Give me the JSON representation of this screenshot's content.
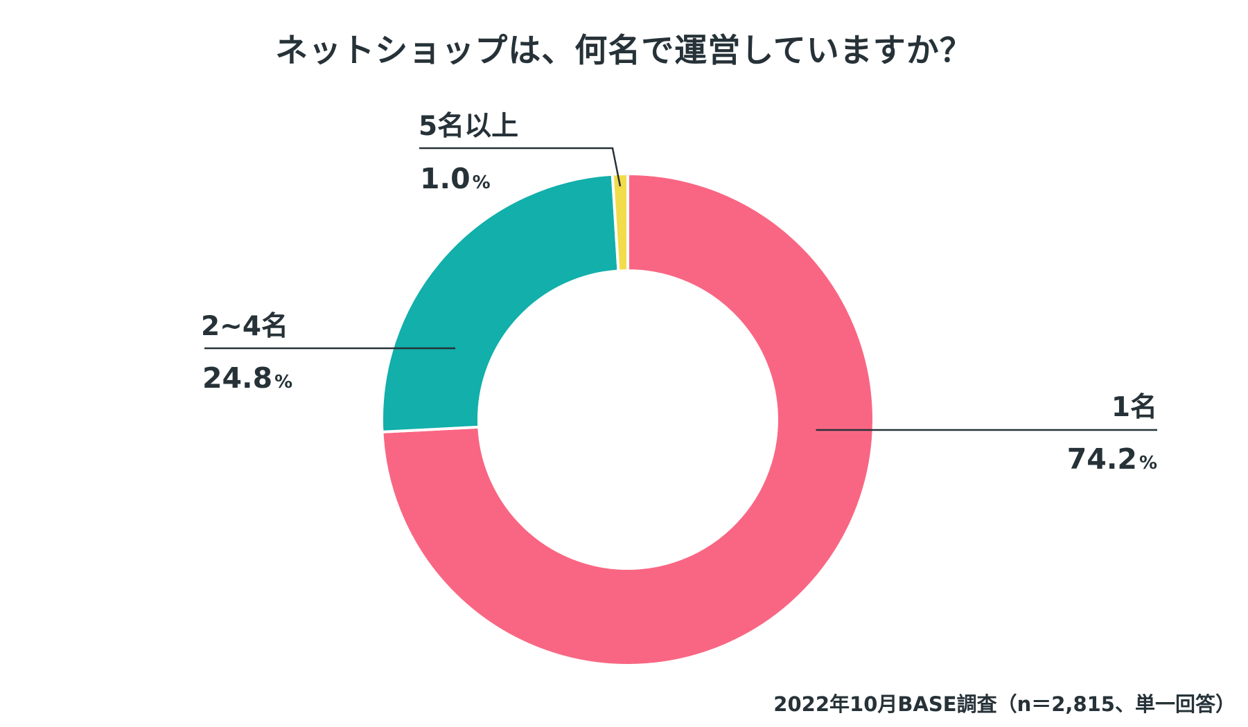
{
  "chart_data": {
    "type": "pie",
    "variant": "donut",
    "title": "ネットショップは、何名で運営していますか？",
    "categories": [
      "1名",
      "2~4名",
      "5名以上"
    ],
    "values": [
      74.2,
      24.8,
      1.0
    ],
    "value_labels": [
      "74.2",
      "24.8",
      "1.0"
    ],
    "unit": "%",
    "colors": [
      "#F96683",
      "#12AFAB",
      "#F2DC4B"
    ],
    "start": "12 o'clock, clockwise",
    "source": "2022年10月BASE調査（n＝2,815、単一回答）"
  }
}
